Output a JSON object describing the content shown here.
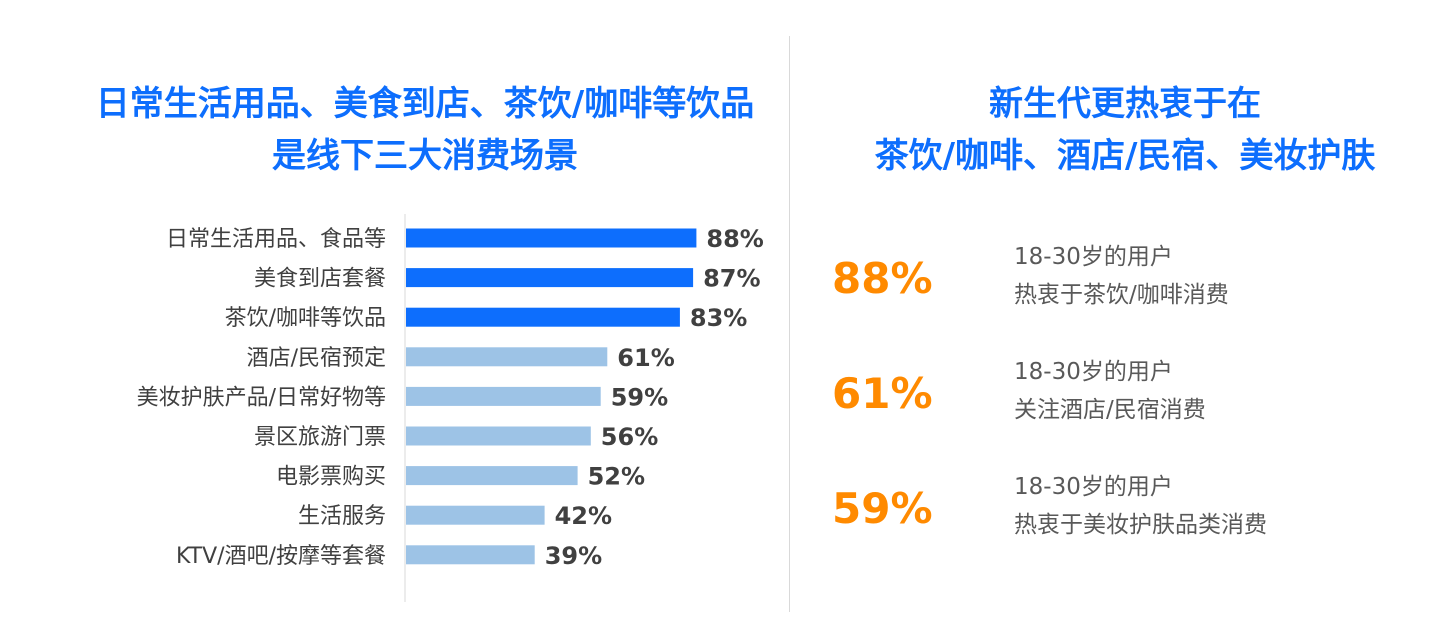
{
  "left_panel": {
    "title_line1": "日常生活用品、美食到店、茶饮/咖啡等饮品",
    "title_line2": "是线下三大消费场景"
  },
  "right_panel": {
    "title_line1": "新生代更热衷于在",
    "title_line2": "茶饮/咖啡、酒店/民宿、美妆护肤",
    "stats": [
      {
        "value": "88%",
        "desc_line1": "18-30岁的用户",
        "desc_line2": "热衷于茶饮/咖啡消费"
      },
      {
        "value": "61%",
        "desc_line1": "18-30岁的用户",
        "desc_line2": "关注酒店/民宿消费"
      },
      {
        "value": "59%",
        "desc_line1": "18-30岁的用户",
        "desc_line2": "热衷于美妆护肤品类消费"
      }
    ]
  },
  "colors": {
    "title_blue": "#0d6efd",
    "bar_highlight": "#0d6efd",
    "bar_normal": "#9dc3e6",
    "accent_orange": "#ff8a00",
    "text_gray": "#404040"
  },
  "chart_data": {
    "type": "bar",
    "orientation": "horizontal",
    "categories": [
      "日常生活用品、食品等",
      "美食到店套餐",
      "茶饮/咖啡等饮品",
      "酒店/民宿预定",
      "美妆护肤产品/日常好物等",
      "景区旅游门票",
      "电影票购买",
      "生活服务",
      "KTV/酒吧/按摩等套餐"
    ],
    "values": [
      88,
      87,
      83,
      61,
      59,
      56,
      52,
      42,
      39
    ],
    "value_labels": [
      "88%",
      "87%",
      "83%",
      "61%",
      "59%",
      "56%",
      "52%",
      "42%",
      "39%"
    ],
    "highlighted": [
      true,
      true,
      true,
      false,
      false,
      false,
      false,
      false,
      false
    ],
    "xlim": [
      0,
      100
    ],
    "grid": false
  }
}
